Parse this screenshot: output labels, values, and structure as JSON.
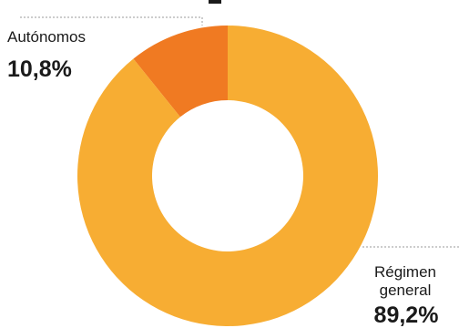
{
  "chart_data": {
    "type": "pie",
    "variant": "donut",
    "categories": [
      "Autónomos",
      "Régimen general"
    ],
    "values": [
      10.8,
      89.2
    ],
    "labels": [
      {
        "name_lines": [
          "Autónomos"
        ],
        "value_text": "10,8%"
      },
      {
        "name_lines": [
          "Régimen",
          "general"
        ],
        "value_text": "89,2%"
      }
    ],
    "colors": [
      "#f07a22",
      "#f7ad33"
    ],
    "legend": "none"
  }
}
